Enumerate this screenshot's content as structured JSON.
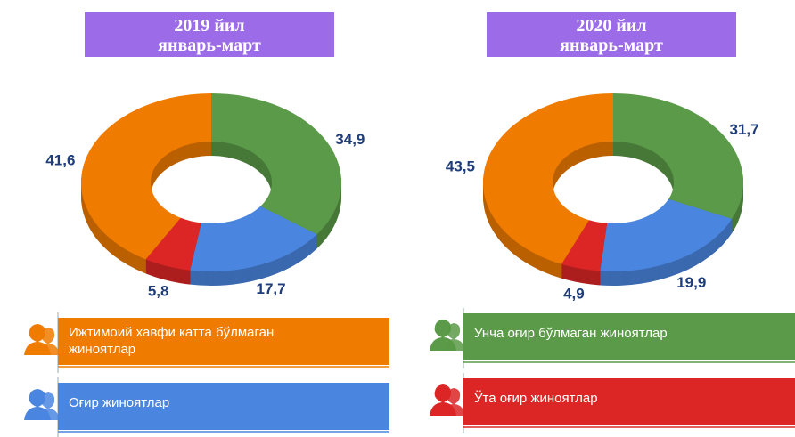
{
  "legend": {
    "items": [
      "Унча оғир бўлмаган жиноятлар",
      "Оғир жиноятлар",
      "Ўта оғир жиноятлар",
      "Ижтимоий хавфи катта бўлмаган жиноятлар"
    ],
    "colors": [
      "#5b9a48",
      "#4a86e0",
      "#dc2626",
      "#ef7b00"
    ]
  },
  "chart_data": [
    {
      "type": "pie",
      "donut": true,
      "title": "2019 йил",
      "subtitle": "январь-март",
      "values": [
        34.9,
        17.7,
        5.8,
        41.6
      ],
      "value_labels": [
        "34,9",
        "17,7",
        "5,8",
        "41,6"
      ]
    },
    {
      "type": "pie",
      "donut": true,
      "title": "2020 йил",
      "subtitle": "январь-март",
      "values": [
        31.7,
        19.9,
        4.9,
        43.5
      ],
      "value_labels": [
        "31,7",
        "19,9",
        "4,9",
        "43,5"
      ]
    }
  ]
}
